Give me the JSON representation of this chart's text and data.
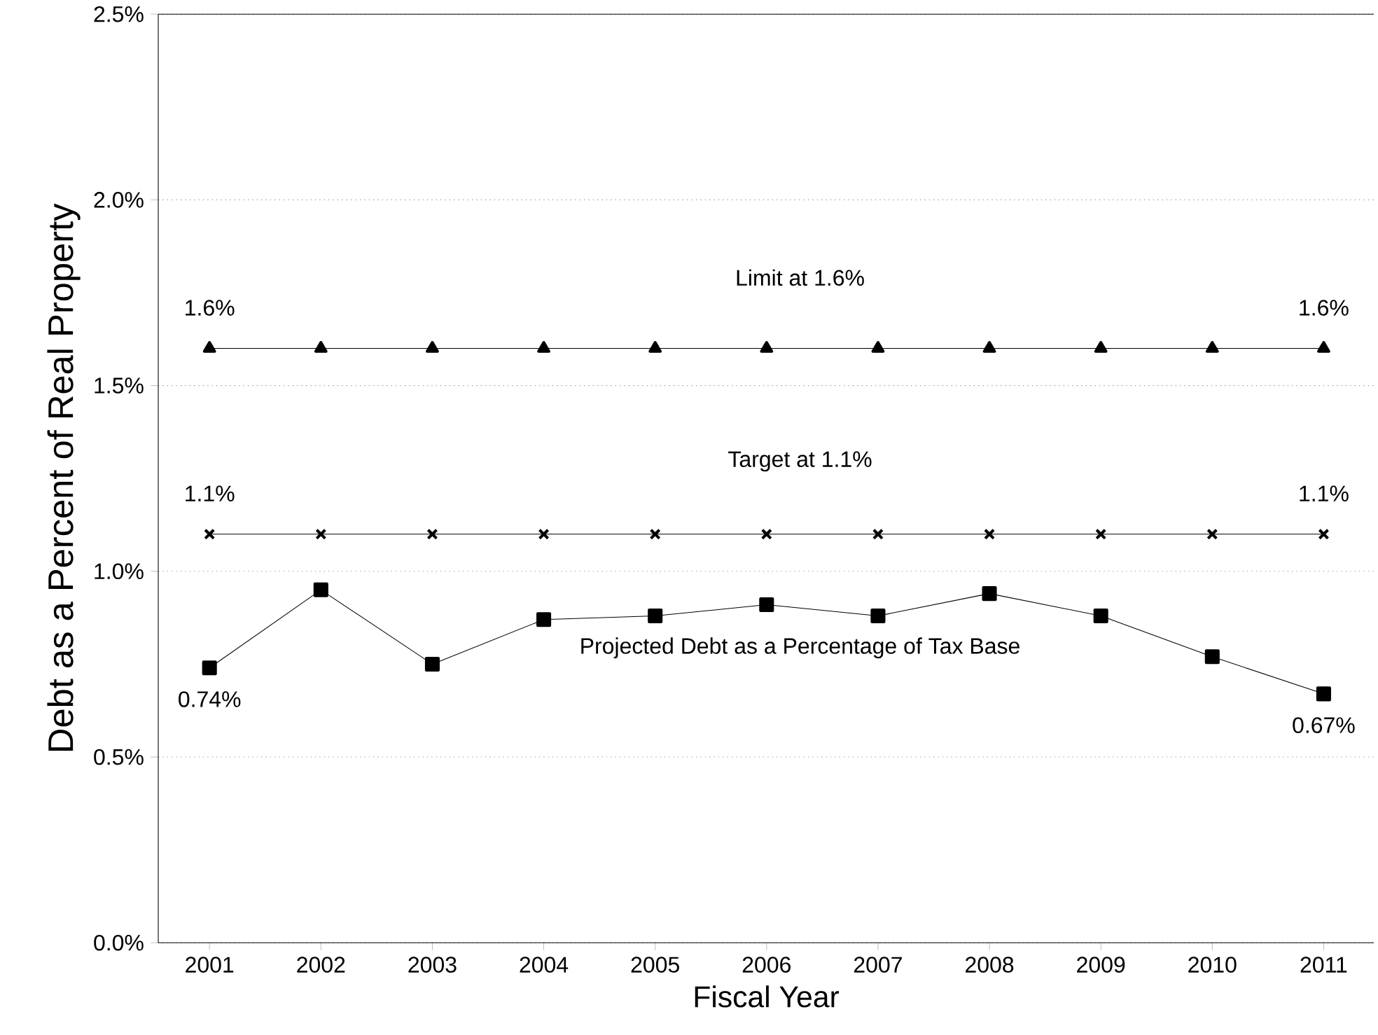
{
  "chart_data": {
    "type": "line",
    "xlabel": "Fiscal Year",
    "ylabel": "Debt as a Percent of Real Property",
    "categories": [
      "2001",
      "2002",
      "2003",
      "2004",
      "2005",
      "2006",
      "2007",
      "2008",
      "2009",
      "2010",
      "2011"
    ],
    "series": [
      {
        "name": "Limit at 1.6%",
        "color": "#000000",
        "marker": "triangle",
        "values": [
          1.6,
          1.6,
          1.6,
          1.6,
          1.6,
          1.6,
          1.6,
          1.6,
          1.6,
          1.6,
          1.6
        ],
        "value_labels": [
          "1.6%",
          null,
          null,
          null,
          null,
          null,
          null,
          null,
          null,
          null,
          "1.6%"
        ]
      },
      {
        "name": "Target at 1.1%",
        "color": "#000000",
        "marker": "cross",
        "values": [
          1.1,
          1.1,
          1.1,
          1.1,
          1.1,
          1.1,
          1.1,
          1.1,
          1.1,
          1.1,
          1.1
        ],
        "value_labels": [
          "1.1%",
          null,
          null,
          null,
          null,
          null,
          null,
          null,
          null,
          null,
          "1.1%"
        ]
      },
      {
        "name": "Projected Debt as a Percentage of Tax Base",
        "color": "#000000",
        "marker": "square",
        "values": [
          0.74,
          0.95,
          0.75,
          0.87,
          0.88,
          0.91,
          0.88,
          0.94,
          0.88,
          0.77,
          0.67
        ],
        "value_labels": [
          "0.74%",
          null,
          null,
          null,
          null,
          null,
          null,
          null,
          null,
          null,
          "0.67%"
        ]
      }
    ],
    "ylim": [
      0,
      2.5
    ],
    "yticks": [
      {
        "value": 0,
        "label": "0.0%"
      },
      {
        "value": 0.5,
        "label": "0.5%"
      },
      {
        "value": 1.0,
        "label": "1.0%"
      },
      {
        "value": 1.5,
        "label": "1.5%"
      },
      {
        "value": 2.0,
        "label": "2.0%"
      },
      {
        "value": 2.5,
        "label": "2.5%"
      }
    ],
    "grid": "y",
    "line_style": "solid"
  }
}
